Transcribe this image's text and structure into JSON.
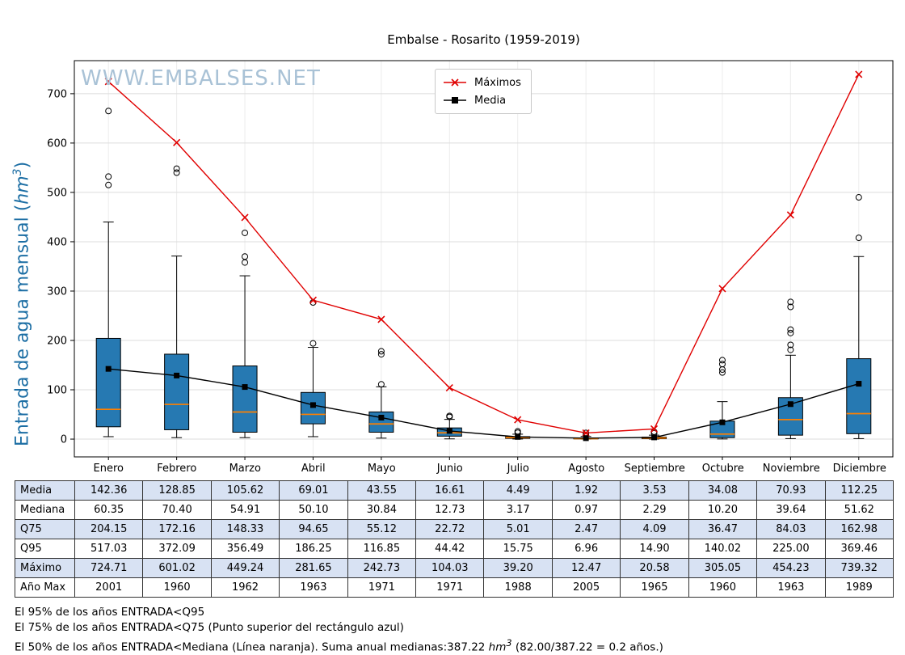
{
  "watermark": "WWW.EMBALSES.NET",
  "y_axis_label": {
    "prefix": "Entrada de agua mensual (",
    "unit": "hm",
    "sup": "3",
    "suffix": ")"
  },
  "chart_data": {
    "type": "boxplot",
    "title": "Embalse - Rosarito (1959-2019)",
    "ylabel": "Entrada de agua mensual (hm³)",
    "xlabel": "",
    "ylim": [
      -36,
      767
    ],
    "yticks": [
      0,
      100,
      200,
      300,
      400,
      500,
      600,
      700
    ],
    "grid": true,
    "legend_position": "top-center",
    "categories": [
      "Enero",
      "Febrero",
      "Marzo",
      "Abril",
      "Mayo",
      "Junio",
      "Julio",
      "Agosto",
      "Septiembre",
      "Octubre",
      "Noviembre",
      "Diciembre"
    ],
    "series": [
      {
        "name": "Máximos",
        "type": "line",
        "marker": "x",
        "color": "#e00000",
        "values": [
          724.71,
          601.02,
          449.24,
          281.65,
          242.73,
          104.03,
          39.2,
          12.47,
          20.58,
          305.05,
          454.23,
          739.32
        ]
      },
      {
        "name": "Media",
        "type": "line",
        "marker": "square",
        "color": "#000000",
        "values": [
          142.36,
          128.85,
          105.62,
          69.01,
          43.55,
          16.61,
          4.49,
          1.92,
          3.53,
          34.08,
          70.93,
          112.25
        ]
      }
    ],
    "boxes": [
      {
        "q1": 25,
        "median": 60.35,
        "q3": 204.15,
        "whisker_low": 5,
        "whisker_high": 440,
        "outliers": [
          515,
          532,
          665
        ]
      },
      {
        "q1": 19,
        "median": 70.4,
        "q3": 172.16,
        "whisker_low": 3,
        "whisker_high": 371,
        "outliers": [
          540,
          548
        ]
      },
      {
        "q1": 14,
        "median": 54.91,
        "q3": 148.33,
        "whisker_low": 3,
        "whisker_high": 331,
        "outliers": [
          358,
          370,
          418
        ]
      },
      {
        "q1": 31,
        "median": 50.1,
        "q3": 94.65,
        "whisker_low": 5,
        "whisker_high": 186,
        "outliers": [
          194,
          277
        ]
      },
      {
        "q1": 14,
        "median": 30.84,
        "q3": 55.12,
        "whisker_low": 2,
        "whisker_high": 106,
        "outliers": [
          111,
          172,
          178
        ]
      },
      {
        "q1": 6,
        "median": 12.73,
        "q3": 22.72,
        "whisker_low": 0.5,
        "whisker_high": 40,
        "outliers": [
          45,
          47
        ]
      },
      {
        "q1": 1.5,
        "median": 3.17,
        "q3": 5.01,
        "whisker_low": 0.2,
        "whisker_high": 10,
        "outliers": [
          13,
          15.8
        ]
      },
      {
        "q1": 0.4,
        "median": 0.97,
        "q3": 2.47,
        "whisker_low": 0.05,
        "whisker_high": 5.5,
        "outliers": [
          8,
          12.47
        ]
      },
      {
        "q1": 0.8,
        "median": 2.29,
        "q3": 4.09,
        "whisker_low": 0.1,
        "whisker_high": 8,
        "outliers": [
          12,
          14.9
        ]
      },
      {
        "q1": 3,
        "median": 10.2,
        "q3": 36.47,
        "whisker_low": 0.3,
        "whisker_high": 76,
        "outliers": [
          135,
          141,
          152,
          160
        ]
      },
      {
        "q1": 8,
        "median": 39.64,
        "q3": 84.03,
        "whisker_low": 1,
        "whisker_high": 170,
        "outliers": [
          181,
          191,
          215,
          222,
          268,
          278
        ]
      },
      {
        "q1": 11,
        "median": 51.62,
        "q3": 162.98,
        "whisker_low": 1,
        "whisker_high": 370,
        "outliers": [
          408,
          490
        ]
      }
    ],
    "colors": {
      "box_fill": "#2679b2",
      "box_edge": "#000000",
      "median_line": "#ff8000",
      "grid_line": "#dcdcdc"
    }
  },
  "table": {
    "row_labels": [
      "Media",
      "Mediana",
      "Q75",
      "Q95",
      "Máximo",
      "Año Max"
    ],
    "rows": [
      [
        "142.36",
        "128.85",
        "105.62",
        "69.01",
        "43.55",
        "16.61",
        "4.49",
        "1.92",
        "3.53",
        "34.08",
        "70.93",
        "112.25"
      ],
      [
        "60.35",
        "70.40",
        "54.91",
        "50.10",
        "30.84",
        "12.73",
        "3.17",
        "0.97",
        "2.29",
        "10.20",
        "39.64",
        "51.62"
      ],
      [
        "204.15",
        "172.16",
        "148.33",
        "94.65",
        "55.12",
        "22.72",
        "5.01",
        "2.47",
        "4.09",
        "36.47",
        "84.03",
        "162.98"
      ],
      [
        "517.03",
        "372.09",
        "356.49",
        "186.25",
        "116.85",
        "44.42",
        "15.75",
        "6.96",
        "14.90",
        "140.02",
        "225.00",
        "369.46"
      ],
      [
        "724.71",
        "601.02",
        "449.24",
        "281.65",
        "242.73",
        "104.03",
        "39.20",
        "12.47",
        "20.58",
        "305.05",
        "454.23",
        "739.32"
      ],
      [
        "2001",
        "1960",
        "1962",
        "1963",
        "1971",
        "1971",
        "1988",
        "2005",
        "1965",
        "1960",
        "1963",
        "1989"
      ]
    ]
  },
  "footnotes": [
    {
      "segments": [
        {
          "t": "El 95% de los años ENTRADA<Q95"
        }
      ]
    },
    {
      "segments": [
        {
          "t": "El 75% de los años ENTRADA<Q75 (Punto superior del rectángulo azul)"
        }
      ]
    },
    {
      "segments": [
        {
          "t": "El 50% de los años ENTRADA<Mediana (Línea naranja). Suma anual medianas:387.22 "
        },
        {
          "t": "hm",
          "style": "italic"
        },
        {
          "t": "3",
          "style": "sup"
        },
        {
          "t": " (82.00/387.22 = 0.2 años.)"
        }
      ]
    }
  ],
  "colors": {
    "axis_label": "#1c6ea4",
    "watermark": "#a9c2d6",
    "table_alt_row": "#d8e2f3"
  }
}
